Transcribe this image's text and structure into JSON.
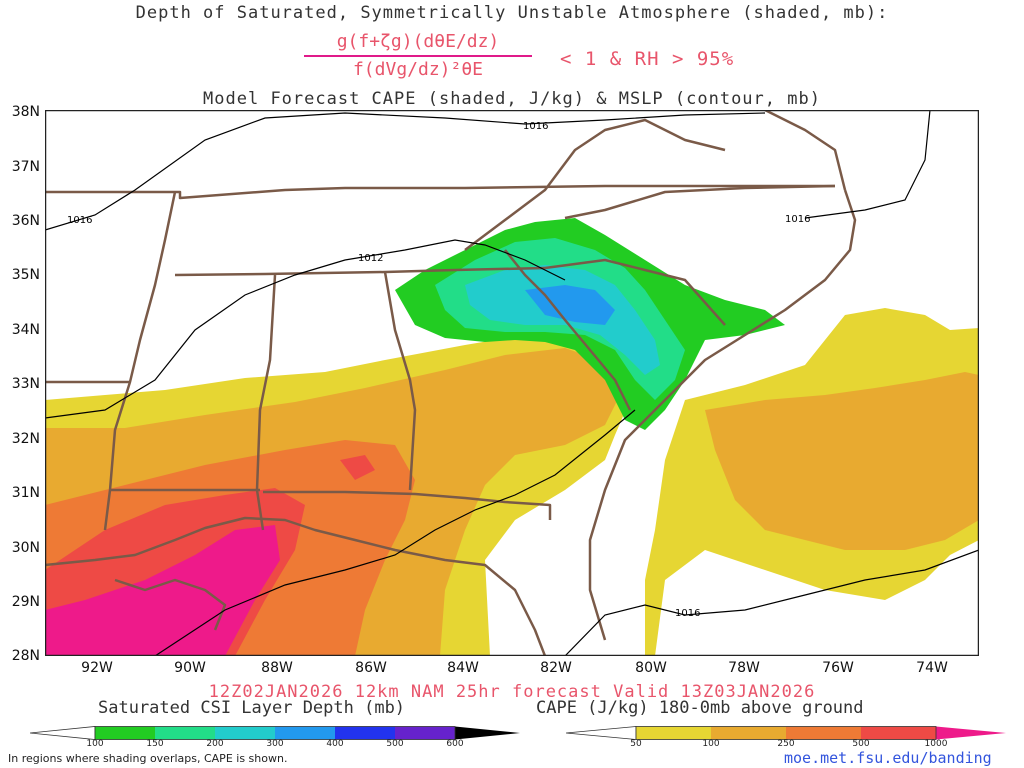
{
  "title": {
    "line1": "Depth of Saturated, Symmetrically Unstable Atmosphere (shaded, mb):",
    "numerator": "g(f+ζg)(dθE/dz)",
    "denominator": "f(dVg/dz)²θE",
    "condition": "< 1 & RH > 95%",
    "line3": "Model Forecast CAPE (shaded, J/kg) & MSLP (contour, mb)"
  },
  "map": {
    "lat_labels": [
      "38N",
      "37N",
      "36N",
      "35N",
      "34N",
      "33N",
      "32N",
      "31N",
      "30N",
      "29N",
      "28N"
    ],
    "lon_labels": [
      "92W",
      "90W",
      "88W",
      "86W",
      "84W",
      "82W",
      "80W",
      "78W",
      "76W",
      "74W"
    ],
    "isobar_labels": [
      "1016",
      "1016",
      "1016",
      "1012",
      "1016"
    ]
  },
  "run_info": "12Z02JAN2026 12km NAM 25hr forecast Valid 13Z03JAN2026",
  "csi_legend": {
    "title": "Saturated CSI Layer Depth (mb)",
    "ticks": [
      "100",
      "150",
      "200",
      "300",
      "400",
      "500",
      "600"
    ],
    "colors": [
      "#22cc22",
      "#22dd88",
      "#22cccc",
      "#2299ee",
      "#2233ee",
      "#6622cc",
      "#000000"
    ]
  },
  "cape_legend": {
    "title": "CAPE (J/kg) 180-0mb above ground",
    "ticks": [
      "50",
      "100",
      "250",
      "500",
      "1000"
    ],
    "colors": [
      "#e6d633",
      "#e8aa30",
      "#ee7a35",
      "#ee4a45",
      "#ee1a8a"
    ]
  },
  "footer": {
    "note": "In regions where shading overlaps, CAPE is shown.",
    "url": "moe.met.fsu.edu/banding"
  }
}
